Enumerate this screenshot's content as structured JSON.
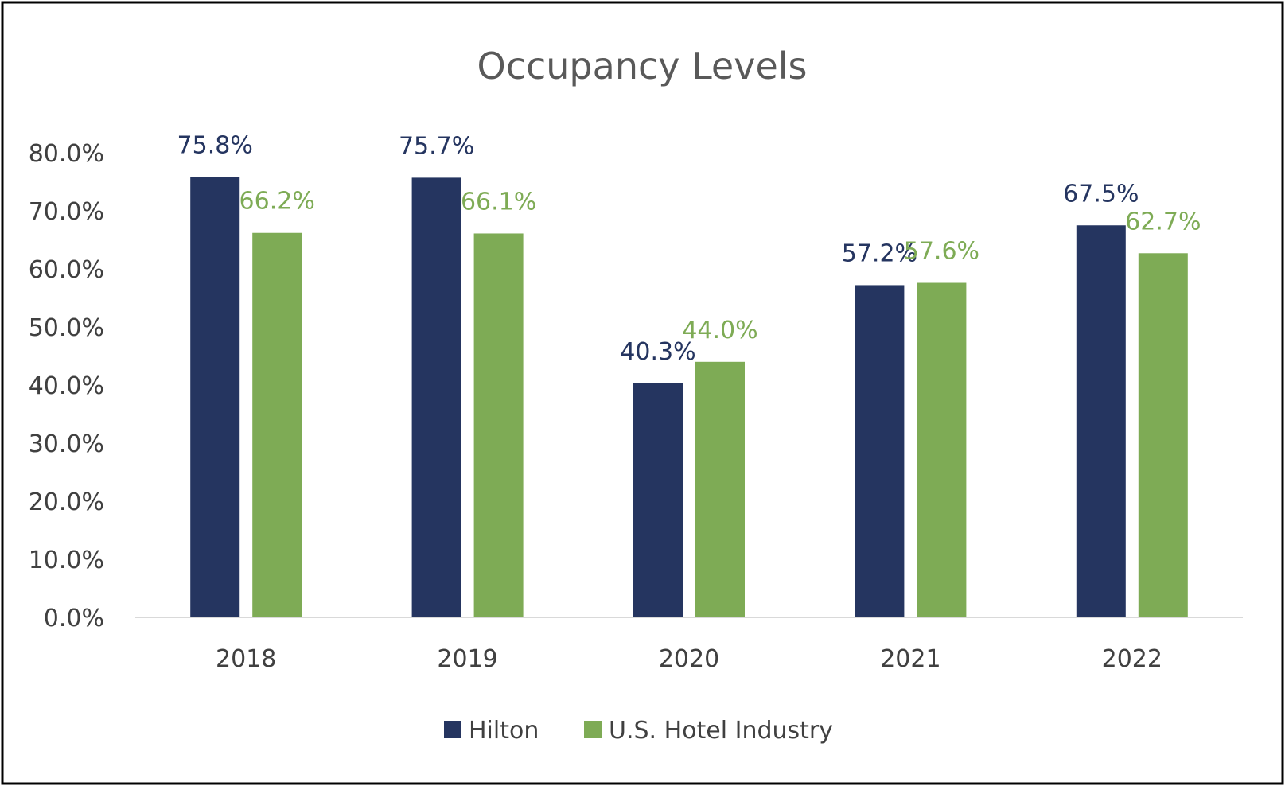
{
  "chart_data": {
    "type": "bar",
    "title": "Occupancy Levels",
    "categories": [
      "2018",
      "2019",
      "2020",
      "2021",
      "2022"
    ],
    "series": [
      {
        "name": "Hilton",
        "color": "#253560",
        "values": [
          75.8,
          75.7,
          40.3,
          57.2,
          67.5
        ],
        "labels": [
          "75.8%",
          "75.7%",
          "40.3%",
          "57.2%",
          "67.5%"
        ]
      },
      {
        "name": "U.S. Hotel Industry",
        "color": "#7eab55",
        "values": [
          66.2,
          66.1,
          44.0,
          57.6,
          62.7
        ],
        "labels": [
          "66.2%",
          "66.1%",
          "44.0%",
          "57.6%",
          "62.7%"
        ]
      }
    ],
    "yticks": [
      "0.0%",
      "10.0%",
      "20.0%",
      "30.0%",
      "40.0%",
      "50.0%",
      "60.0%",
      "70.0%",
      "80.0%"
    ],
    "ylim": [
      0,
      80
    ],
    "grid": false,
    "legend": "bottom-center"
  }
}
